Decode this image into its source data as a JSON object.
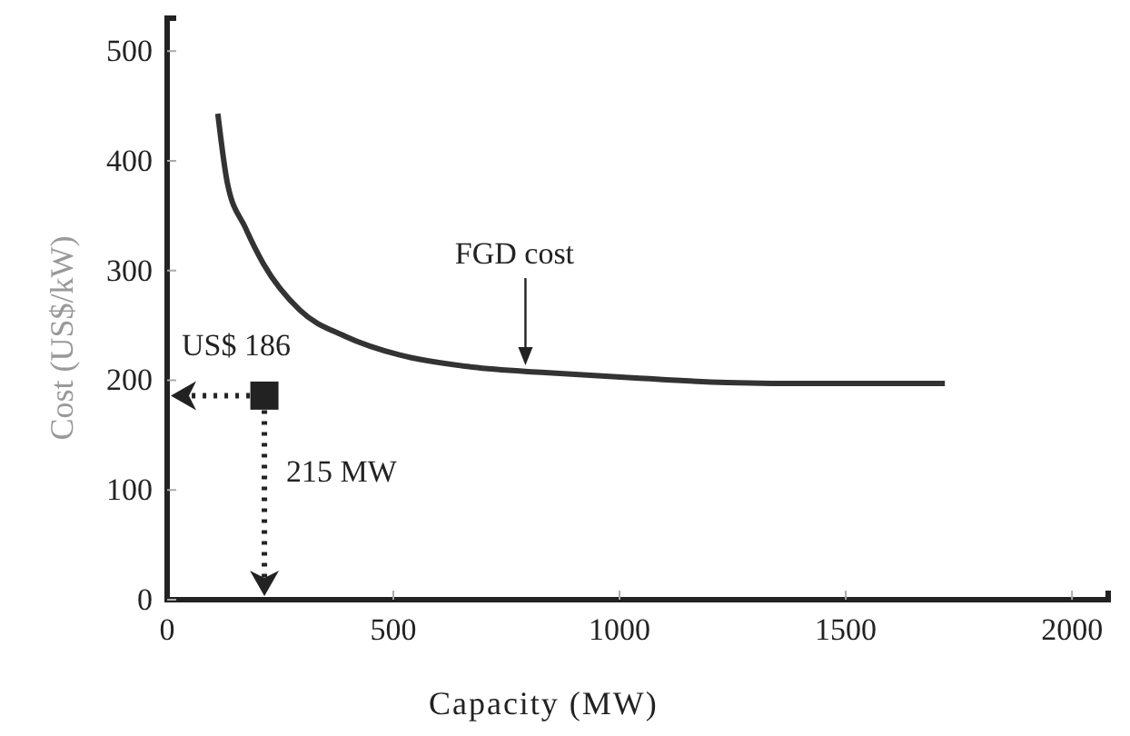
{
  "chart_data": {
    "type": "line",
    "xlabel": "Capacity (MW)",
    "ylabel": "Cost (US$/kW)",
    "xlim": [
      0,
      2080
    ],
    "ylim": [
      0,
      530
    ],
    "xticks": [
      0,
      500,
      1000,
      1500,
      2000
    ],
    "yticks": [
      0,
      100,
      200,
      300,
      400,
      500
    ],
    "grid": false,
    "series": [
      {
        "color": "#333333",
        "x": [
          112,
          133,
          173,
          213,
          293,
          394,
          514,
          675,
          835,
          1036,
          1237,
          1438,
          1719
        ],
        "values": [
          443,
          380,
          339,
          306,
          264,
          240,
          223,
          212,
          207,
          202,
          198,
          197,
          197
        ]
      },
      {
        "type": "scatter",
        "color": "#222222",
        "marker": "square",
        "x": [
          215
        ],
        "values": [
          186
        ]
      }
    ],
    "annotations": [
      "FGD cost",
      "US$ 186",
      "215 MW"
    ]
  }
}
